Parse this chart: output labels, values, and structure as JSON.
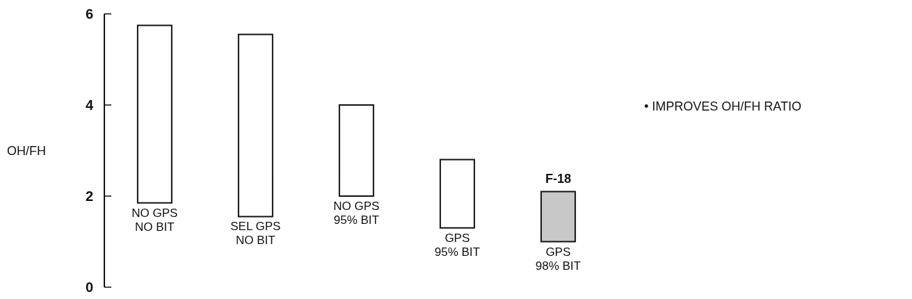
{
  "chart_data": {
    "type": "bar",
    "ylabel": "OH/FH",
    "categories": [
      "NO GPS\nNO BIT",
      "SEL GPS\nNO BIT",
      "NO GPS\n95% BIT",
      "GPS\n95% BIT",
      "GPS\n98% BIT"
    ],
    "base": [
      1.85,
      1.55,
      2.0,
      1.3,
      1.0
    ],
    "values": [
      3.9,
      4.0,
      2.0,
      1.5,
      1.1
    ],
    "colors": [
      "#ffffff",
      "#ffffff",
      "#ffffff",
      "#ffffff",
      "#c8c8c8"
    ],
    "ylim": [
      0,
      6
    ],
    "yticks": [
      0,
      2,
      4,
      6
    ],
    "annotations": [
      {
        "text": "F-18",
        "x": "GPS\n98% BIT",
        "y": 2.1
      },
      "• IMPROVES OH/FH RATIO"
    ]
  }
}
